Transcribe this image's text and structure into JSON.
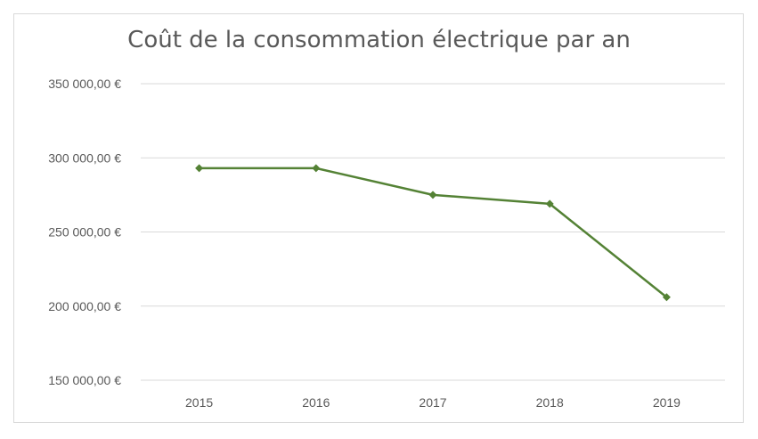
{
  "chart_data": {
    "type": "line",
    "title": "Coût de la consommation électrique par an",
    "categories": [
      "2015",
      "2016",
      "2017",
      "2018",
      "2019"
    ],
    "series": [
      {
        "values": [
          293000,
          293000,
          275000,
          269000,
          206000
        ]
      }
    ],
    "ylim": [
      150000,
      350000
    ],
    "yticks": [
      150000,
      200000,
      250000,
      300000,
      350000
    ],
    "ytick_labels": [
      "150 000,00 €",
      "200 000,00 €",
      "250 000,00 €",
      "300 000,00 €",
      "350 000,00 €"
    ],
    "grid": true,
    "legend": "none",
    "colors": {
      "line": "#548235",
      "grid": "#d9d9d9",
      "text": "#595959"
    },
    "marker": "diamond"
  }
}
